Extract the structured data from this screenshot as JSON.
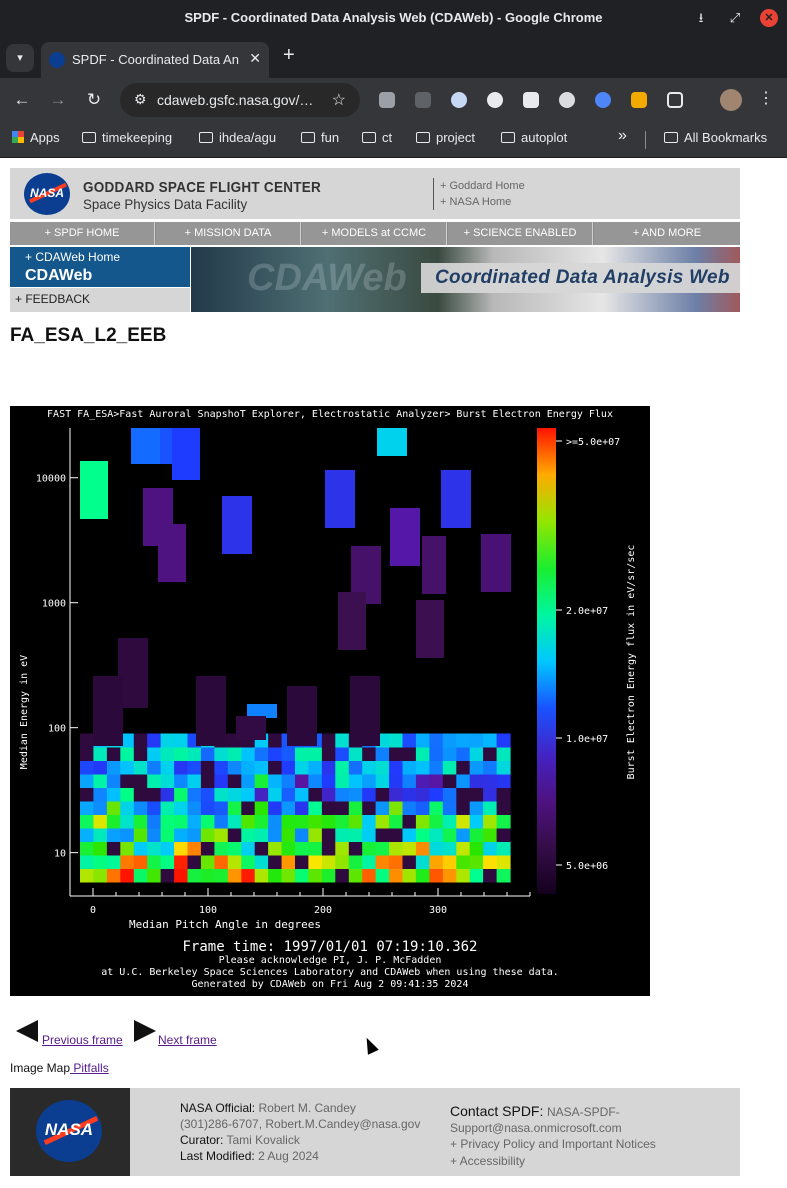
{
  "window": {
    "title": "SPDF - Coordinated Data Analysis Web (CDAWeb) - Google Chrome"
  },
  "tab": {
    "label": "SPDF - Coordinated Data An",
    "close": "✕"
  },
  "toolbar": {
    "url": "cdaweb.gsfc.nasa.gov/…"
  },
  "bookmarks": {
    "apps": "Apps",
    "items": [
      "timekeeping",
      "ihdea/agu",
      "fun",
      "ct",
      "project",
      "autoplot"
    ],
    "overflow": "»",
    "all": "All Bookmarks"
  },
  "header": {
    "logo_text": "NASA",
    "org": "GODDARD SPACE FLIGHT CENTER",
    "facility": "Space Physics Data Facility",
    "links": [
      "+ Goddard Home",
      "+ NASA Home"
    ]
  },
  "navbar": [
    "+ SPDF HOME",
    "+ MISSION DATA",
    "+ MODELS at CCMC",
    "+ SCIENCE ENABLED",
    "+ AND MORE"
  ],
  "cdaweb": {
    "home": "+ CDAWeb Home",
    "name": "CDAWeb",
    "feedback": "+ FEEDBACK",
    "banner_ghost": "CDAWeb",
    "banner_title": "Coordinated Data Analysis Web"
  },
  "dataset_title": "FA_ESA_L2_EEB",
  "chart_data": {
    "type": "heatmap",
    "title": "FAST  FA_ESA>Fast Auroral SnapshoT Explorer, Electrostatic Analyzer> Burst Electron Energy Flux",
    "xlabel": "Median Pitch Angle in degrees",
    "ylabel": "Median Energy in eV",
    "x_ticks": [
      "0",
      "100",
      "200",
      "300"
    ],
    "xlim": [
      -20,
      380
    ],
    "y_ticks": [
      "10",
      "100",
      "1000",
      "10000"
    ],
    "ylim": [
      4.5,
      25000
    ],
    "y_scale": "log",
    "colorbar_label": "Burst Electron Energy flux in eV/sr/sec",
    "colorbar_ticks": [
      ">=5.0e+07",
      "2.0e+07",
      "1.0e+07",
      "5.0e+06"
    ],
    "footer_lines": [
      "Frame time: 1997/01/01 07:19:10.362",
      "Please acknowledge PI, J. P. McFadden",
      "at U.C. Berkeley Space Sciences Laboratory and CDAWeb when using these data.",
      "Generated by CDAWeb on Fri Aug  2 09:41:35 2024"
    ],
    "background": "#000000"
  },
  "frame_nav": {
    "previous": "Previous frame",
    "next": "Next frame"
  },
  "image_map": {
    "label": "Image Map",
    "link": " Pitfalls"
  },
  "footer": {
    "official_label": "NASA Official:",
    "official": "Robert M. Candey",
    "phone_email": "(301)286-6707, Robert.M.Candey@nasa.gov",
    "curator_label": "Curator:",
    "curator": "Tami Kovalick",
    "modified_label": "Last Modified:",
    "modified": "2 Aug 2024",
    "contact_label": "Contact SPDF:",
    "contact": "NASA-SPDF-Support@nasa.onmicrosoft.com",
    "privacy": "+ Privacy Policy and Important Notices",
    "accessibility": "+ Accessibility"
  }
}
